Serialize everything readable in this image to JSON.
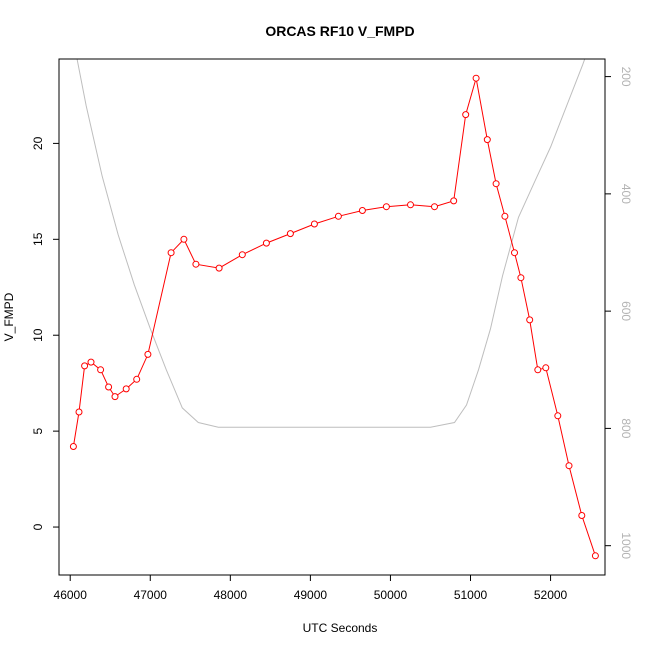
{
  "chart_data": {
    "type": "line",
    "title": "ORCAS RF10 V_FMPD",
    "xlabel": "UTC Seconds",
    "ylabel": "V_FMPD",
    "xlim": [
      45860,
      52680
    ],
    "ylim": [
      -2.5,
      24.4
    ],
    "right_ylim": [
      1050,
      170
    ],
    "x_ticks": [
      46000,
      47000,
      48000,
      49000,
      50000,
      51000,
      52000
    ],
    "x_tick_labels": [
      "46000",
      "47000",
      "48000",
      "49000",
      "50000",
      "51000",
      "52000"
    ],
    "y_ticks": [
      0,
      5,
      10,
      15,
      20
    ],
    "y_tick_labels": [
      "0",
      "5",
      "10",
      "15",
      "20"
    ],
    "right_y_ticks": [
      200,
      400,
      600,
      800,
      1000
    ],
    "right_y_tick_labels": [
      "200",
      "400",
      "600",
      "800",
      "1000"
    ],
    "grid": false,
    "series": [
      {
        "color": "#ff0000",
        "style": "line-with-open-circles",
        "axis": "left",
        "x": [
          46040,
          46110,
          46180,
          46260,
          46380,
          46480,
          46560,
          46700,
          46830,
          46970,
          47260,
          47420,
          47570,
          47860,
          48150,
          48450,
          48750,
          49050,
          49350,
          49650,
          49950,
          50250,
          50550,
          50790,
          50940,
          51070,
          51210,
          51320,
          51430,
          51550,
          51630,
          51740,
          51840,
          51940,
          52090,
          52230,
          52390,
          52560
        ],
        "y": [
          4.2,
          6.0,
          8.4,
          8.6,
          8.2,
          7.3,
          6.8,
          7.2,
          7.7,
          9.0,
          14.3,
          15.0,
          13.7,
          13.5,
          14.2,
          14.8,
          15.3,
          15.8,
          16.2,
          16.5,
          16.7,
          16.8,
          16.7,
          17.0,
          21.5,
          23.4,
          20.2,
          17.9,
          16.2,
          14.3,
          13.0,
          10.8,
          8.2,
          8.3,
          5.8,
          3.2,
          0.6,
          -1.5
        ]
      },
      {
        "color": "#bebebe",
        "style": "line",
        "axis": "right",
        "x": [
          45860,
          46000,
          46200,
          46400,
          46600,
          46800,
          47000,
          47200,
          47400,
          47600,
          47850,
          48500,
          49500,
          50500,
          50800,
          50950,
          51100,
          51250,
          51400,
          51600,
          51800,
          52000,
          52200,
          52400,
          52560,
          52680
        ],
        "y": [
          10,
          110,
          250,
          370,
          470,
          555,
          630,
          700,
          765,
          790,
          798,
          798,
          798,
          798,
          790,
          760,
          700,
          630,
          540,
          440,
          380,
          320,
          250,
          180,
          120,
          60
        ]
      }
    ]
  }
}
